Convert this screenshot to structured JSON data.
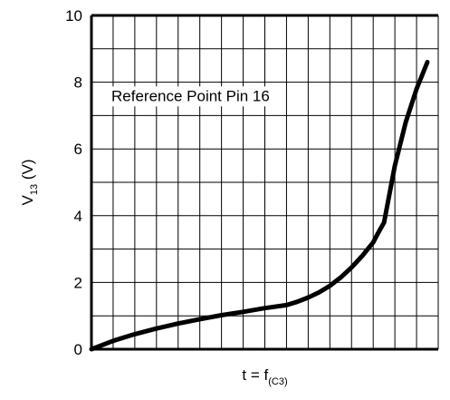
{
  "chart_data": {
    "type": "line",
    "title": "",
    "annotation": "Reference Point Pin 16",
    "ylabel": {
      "main": "V",
      "sub": "13",
      "suffix": " (V)"
    },
    "xlabel": {
      "main": "t = f",
      "sub": "(C3)"
    },
    "ylim": [
      0,
      10
    ],
    "xlim": [
      0,
      16
    ],
    "y_ticks": [
      {
        "value": 0,
        "label": "0"
      },
      {
        "value": 2,
        "label": "2"
      },
      {
        "value": 4,
        "label": "4"
      },
      {
        "value": 6,
        "label": "6"
      },
      {
        "value": 8,
        "label": "8"
      },
      {
        "value": 10,
        "label": "10"
      }
    ],
    "x_tick_labels_shown": false,
    "grid": true,
    "vertical_grid_divisions": 16,
    "horizontal_grid_divisions": 10,
    "series": [
      {
        "color": "#000000",
        "x": [
          0.0,
          1.0,
          2.0,
          3.0,
          4.0,
          5.0,
          6.0,
          7.0,
          8.0,
          9.0,
          9.5,
          10.0,
          10.5,
          11.0,
          11.5,
          12.0,
          12.5,
          13.0,
          13.2,
          13.5,
          14.0,
          14.5,
          15.0,
          15.5
        ],
        "y": [
          0.0,
          0.25,
          0.45,
          0.62,
          0.77,
          0.9,
          1.02,
          1.12,
          1.23,
          1.32,
          1.42,
          1.55,
          1.7,
          1.9,
          2.15,
          2.45,
          2.8,
          3.2,
          3.45,
          3.8,
          5.5,
          6.8,
          7.8,
          8.6
        ]
      }
    ],
    "colors": {
      "line": "#000000",
      "grid": "#000000",
      "frame": "#000000",
      "background": "#ffffff"
    }
  }
}
